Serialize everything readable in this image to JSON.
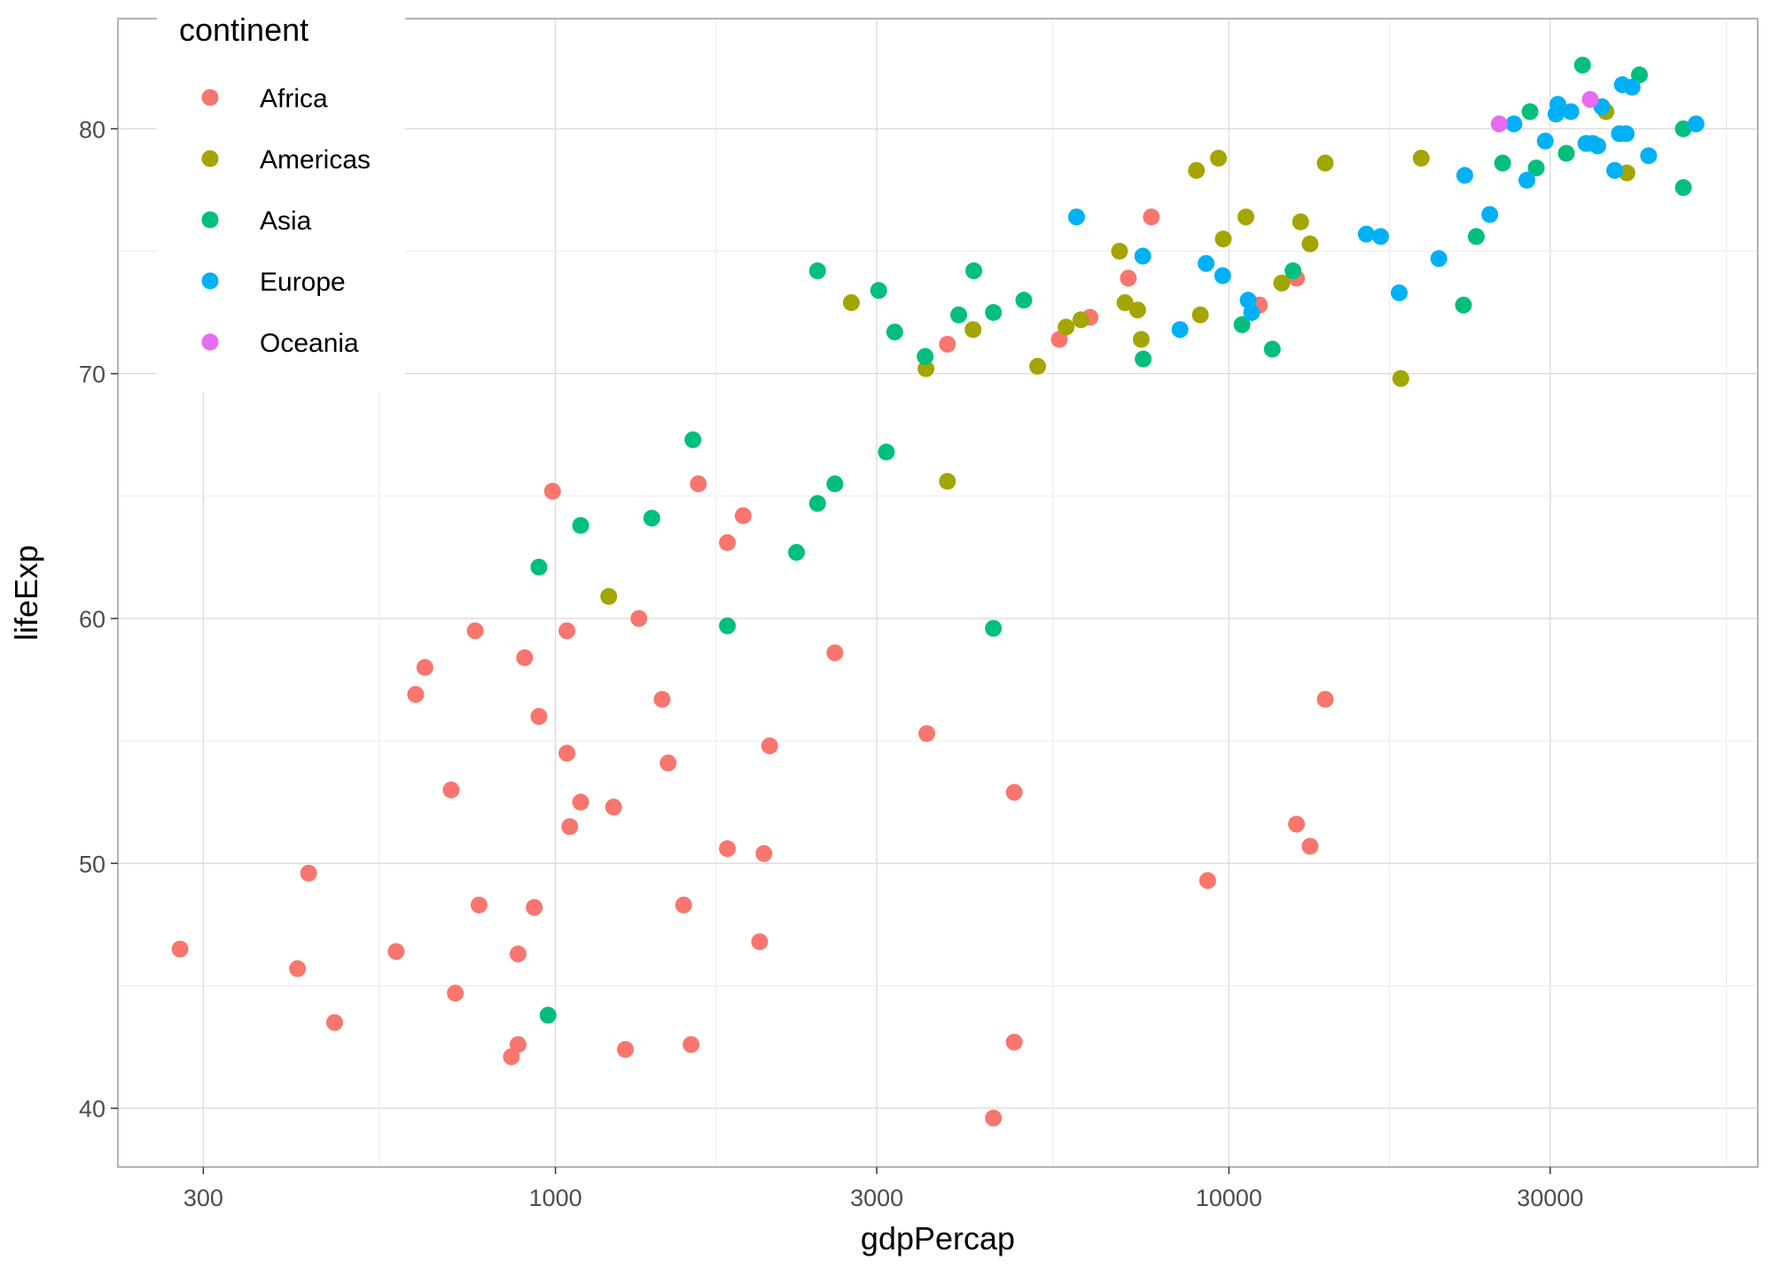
{
  "chart_data": {
    "type": "scatter",
    "title": "",
    "xlabel": "gdpPercap",
    "ylabel": "lifeExp",
    "x_scale": "log10",
    "xlim": [
      224,
      61000
    ],
    "ylim": [
      37.6,
      84.5
    ],
    "x_ticks": [
      300,
      1000,
      3000,
      10000,
      30000
    ],
    "x_tick_labels": [
      "300",
      "1000",
      "3000",
      "10000",
      "30000"
    ],
    "y_ticks": [
      40,
      50,
      60,
      70,
      80
    ],
    "y_tick_labels": [
      "40",
      "50",
      "60",
      "70",
      "80"
    ],
    "grid": true,
    "legend": {
      "title": "continent",
      "placement": "top-left",
      "entries": [
        {
          "name": "Africa",
          "color": "#F8766D"
        },
        {
          "name": "Americas",
          "color": "#A3A500"
        },
        {
          "name": "Asia",
          "color": "#00BF7D"
        },
        {
          "name": "Europe",
          "color": "#00B0F6"
        },
        {
          "name": "Oceania",
          "color": "#E76BF3"
        }
      ]
    },
    "series": [
      {
        "name": "Africa",
        "color": "#F8766D",
        "points": [
          [
            277,
            46.5
          ],
          [
            414,
            45.7
          ],
          [
            430,
            49.6
          ],
          [
            470,
            43.5
          ],
          [
            580,
            46.4
          ],
          [
            620,
            56.9
          ],
          [
            640,
            58.0
          ],
          [
            700,
            53.0
          ],
          [
            710,
            44.7
          ],
          [
            760,
            59.5
          ],
          [
            770,
            48.3
          ],
          [
            860,
            42.1
          ],
          [
            880,
            42.6
          ],
          [
            880,
            46.3
          ],
          [
            900,
            58.4
          ],
          [
            930,
            48.2
          ],
          [
            945,
            56.0
          ],
          [
            990,
            65.2
          ],
          [
            1040,
            59.5
          ],
          [
            1040,
            54.5
          ],
          [
            1050,
            51.5
          ],
          [
            1090,
            52.5
          ],
          [
            1220,
            52.3
          ],
          [
            1270,
            42.4
          ],
          [
            1330,
            60.0
          ],
          [
            1440,
            56.7
          ],
          [
            1470,
            54.1
          ],
          [
            1550,
            48.3
          ],
          [
            1590,
            42.6
          ],
          [
            1630,
            65.5
          ],
          [
            1800,
            50.6
          ],
          [
            1800,
            63.1
          ],
          [
            1900,
            64.2
          ],
          [
            2010,
            46.8
          ],
          [
            2040,
            50.4
          ],
          [
            2080,
            54.8
          ],
          [
            2600,
            58.6
          ],
          [
            3560,
            55.3
          ],
          [
            3820,
            71.2
          ],
          [
            4470,
            39.6
          ],
          [
            4800,
            52.9
          ],
          [
            4800,
            42.7
          ],
          [
            5600,
            71.4
          ],
          [
            6220,
            72.3
          ],
          [
            7090,
            73.9
          ],
          [
            7670,
            76.4
          ],
          [
            11100,
            72.8
          ],
          [
            12600,
            73.9
          ],
          [
            12600,
            51.6
          ],
          [
            13200,
            50.7
          ],
          [
            13900,
            56.7
          ],
          [
            9300,
            49.3
          ]
        ]
      },
      {
        "name": "Americas",
        "color": "#A3A500",
        "points": [
          [
            1200,
            60.9
          ],
          [
            2750,
            72.9
          ],
          [
            3550,
            70.2
          ],
          [
            3820,
            65.6
          ],
          [
            4170,
            71.8
          ],
          [
            5200,
            70.3
          ],
          [
            5730,
            71.9
          ],
          [
            6030,
            72.2
          ],
          [
            6880,
            75.0
          ],
          [
            7010,
            72.9
          ],
          [
            7320,
            72.6
          ],
          [
            7410,
            71.4
          ],
          [
            8950,
            78.3
          ],
          [
            9070,
            72.4
          ],
          [
            9650,
            78.8
          ],
          [
            9810,
            75.5
          ],
          [
            10600,
            76.4
          ],
          [
            11980,
            73.7
          ],
          [
            12780,
            76.2
          ],
          [
            13200,
            75.3
          ],
          [
            13900,
            78.6
          ],
          [
            18000,
            69.8
          ],
          [
            19300,
            78.8
          ],
          [
            36300,
            80.7
          ],
          [
            39000,
            78.2
          ]
        ]
      },
      {
        "name": "Asia",
        "color": "#00BF7D",
        "points": [
          [
            945,
            62.1
          ],
          [
            975,
            43.8
          ],
          [
            1090,
            63.8
          ],
          [
            1390,
            64.1
          ],
          [
            1600,
            67.3
          ],
          [
            1800,
            59.7
          ],
          [
            2280,
            62.7
          ],
          [
            2450,
            74.2
          ],
          [
            2450,
            64.7
          ],
          [
            2600,
            65.5
          ],
          [
            3100,
            66.8
          ],
          [
            3020,
            73.4
          ],
          [
            3190,
            71.7
          ],
          [
            3540,
            70.7
          ],
          [
            3970,
            72.4
          ],
          [
            4180,
            74.2
          ],
          [
            4470,
            72.5
          ],
          [
            4470,
            59.6
          ],
          [
            4960,
            73.0
          ],
          [
            7460,
            70.6
          ],
          [
            10460,
            72.0
          ],
          [
            11600,
            71.0
          ],
          [
            12450,
            74.2
          ],
          [
            22300,
            72.8
          ],
          [
            23300,
            75.6
          ],
          [
            25500,
            78.6
          ],
          [
            28000,
            80.7
          ],
          [
            28600,
            78.4
          ],
          [
            31700,
            79.0
          ],
          [
            33500,
            82.6
          ],
          [
            40700,
            82.2
          ],
          [
            47300,
            80.0
          ],
          [
            47300,
            77.6
          ]
        ]
      },
      {
        "name": "Europe",
        "color": "#00B0F6",
        "points": [
          [
            5940,
            76.4
          ],
          [
            7450,
            74.8
          ],
          [
            8460,
            71.8
          ],
          [
            9250,
            74.5
          ],
          [
            9790,
            74.0
          ],
          [
            10680,
            73.0
          ],
          [
            10810,
            72.5
          ],
          [
            16000,
            75.7
          ],
          [
            16800,
            75.6
          ],
          [
            17900,
            73.3
          ],
          [
            20500,
            74.7
          ],
          [
            22400,
            78.1
          ],
          [
            24400,
            76.5
          ],
          [
            26500,
            80.2
          ],
          [
            27700,
            77.9
          ],
          [
            29500,
            79.5
          ],
          [
            30600,
            80.6
          ],
          [
            30800,
            81.0
          ],
          [
            32200,
            80.7
          ],
          [
            33900,
            79.4
          ],
          [
            34700,
            79.4
          ],
          [
            35300,
            79.3
          ],
          [
            35800,
            80.9
          ],
          [
            37400,
            78.3
          ],
          [
            38000,
            79.8
          ],
          [
            38400,
            81.8
          ],
          [
            38900,
            79.8
          ],
          [
            39700,
            81.7
          ],
          [
            42000,
            78.9
          ],
          [
            49400,
            80.2
          ]
        ]
      },
      {
        "name": "Oceania",
        "color": "#E76BF3",
        "points": [
          [
            25200,
            80.2
          ],
          [
            34400,
            81.2
          ]
        ]
      }
    ]
  }
}
